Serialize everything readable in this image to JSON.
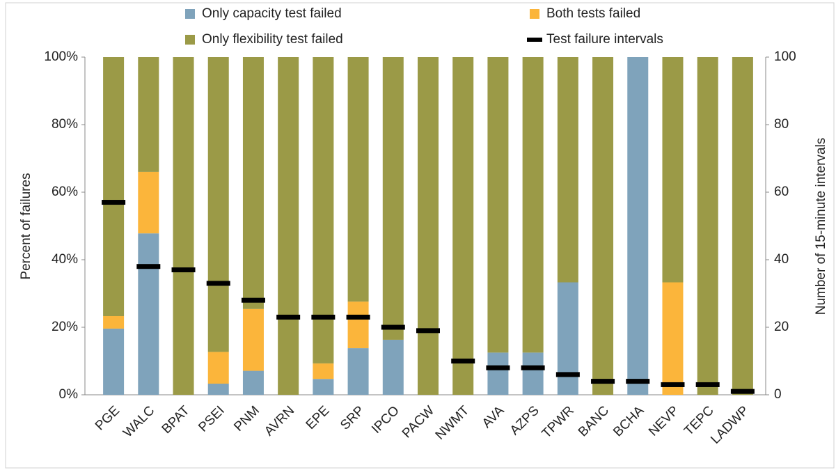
{
  "chart_data": {
    "type": "bar",
    "stacked": true,
    "y_label": "Percent of failures",
    "y2_label": "Number of 15-minute intervals",
    "categories": [
      "PGE",
      "WALC",
      "BPAT",
      "PSEI",
      "PNM",
      "AVRN",
      "EPE",
      "SRP",
      "IPCO",
      "PACW",
      "NWMT",
      "AVA",
      "AZPS",
      "TPWR",
      "BANC",
      "BCHA",
      "NEVP",
      "TEPC",
      "LADWP"
    ],
    "series": [
      {
        "name": "Only capacity test failed",
        "color": "#7fa3bb",
        "values": [
          19.6,
          47.8,
          0,
          3.3,
          7.1,
          0,
          4.7,
          13.8,
          16.3,
          0,
          0,
          12.5,
          12.5,
          33.3,
          0,
          100,
          0,
          0,
          0
        ]
      },
      {
        "name": "Both tests failed",
        "color": "#fbb53b",
        "values": [
          3.7,
          18.2,
          0,
          9.4,
          18.3,
          0,
          4.6,
          13.8,
          0,
          0,
          0,
          0,
          0,
          0,
          0,
          0,
          33.3,
          0,
          0
        ]
      },
      {
        "name": "Only flexibility test failed",
        "color": "#9b9a47",
        "values": [
          76.7,
          34,
          100,
          87.3,
          74.6,
          100,
          90.7,
          72.4,
          83.7,
          100,
          100,
          87.5,
          87.5,
          66.7,
          100,
          0,
          66.7,
          100,
          100
        ]
      },
      {
        "name": "Test failure intervals",
        "color": "#000000",
        "axis": "y2",
        "values": [
          57,
          38,
          37,
          33,
          28,
          23,
          23,
          23,
          20,
          19,
          10,
          8,
          8,
          6,
          4,
          4,
          3,
          3,
          1
        ]
      }
    ],
    "ylim": [
      0,
      100
    ],
    "yticks": [
      {
        "value": 0,
        "label": "0%"
      },
      {
        "value": 20,
        "label": "20%"
      },
      {
        "value": 40,
        "label": "40%"
      },
      {
        "value": 60,
        "label": "60%"
      },
      {
        "value": 80,
        "label": "80%"
      },
      {
        "value": 100,
        "label": "100%"
      }
    ],
    "y2lim": [
      0,
      100
    ],
    "y2ticks": [
      0,
      20,
      40,
      60,
      80,
      100
    ]
  }
}
